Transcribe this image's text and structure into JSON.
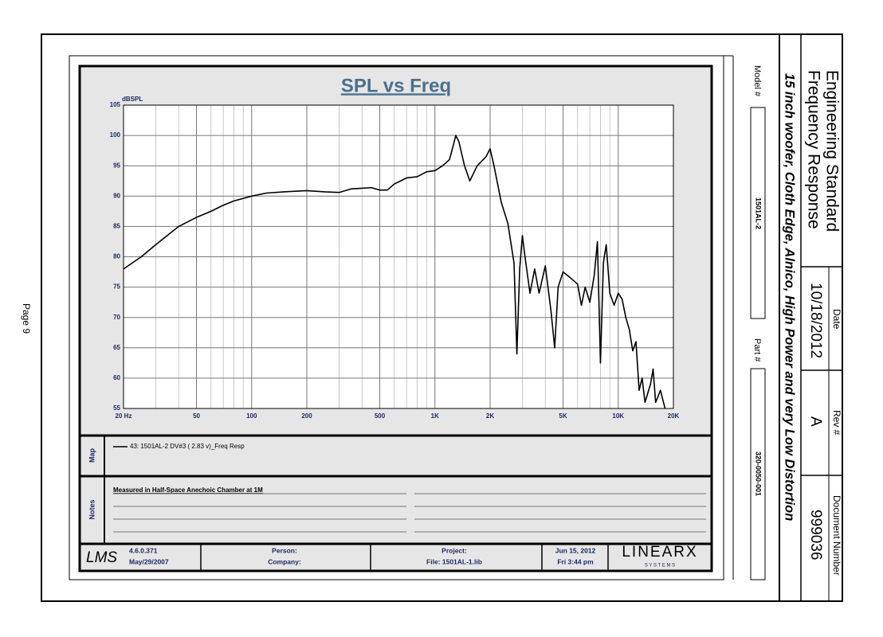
{
  "page_label": "Page 9",
  "title_block": {
    "title_line1": "Engineering Standard",
    "title_line2": "Frequency Response",
    "description": "15 inch woofer, Cloth Edge, Alnico, High Power and very Low Distortion",
    "date_label": "Date",
    "date": "10/18/2012",
    "rev_label": "Rev #",
    "rev": "A",
    "doc_label": "Document Number",
    "doc": "999036"
  },
  "side": {
    "model_label": "Model #",
    "model": "1501AL-2",
    "part_label": "Part #",
    "part": "320-0050-001"
  },
  "chart_data": {
    "type": "line",
    "title": "SPL vs Freq",
    "y_label": "dBSPL",
    "x": [
      20,
      25,
      30,
      40,
      50,
      60,
      70,
      80,
      100,
      120,
      150,
      200,
      250,
      300,
      350,
      400,
      450,
      500,
      550,
      600,
      650,
      700,
      800,
      900,
      1000,
      1100,
      1200,
      1250,
      1300,
      1350,
      1450,
      1550,
      1700,
      1900,
      2000,
      2100,
      2300,
      2500,
      2700,
      2800,
      2900,
      3000,
      3100,
      3300,
      3500,
      3700,
      4000,
      4300,
      4500,
      4700,
      5000,
      5500,
      6000,
      6300,
      6600,
      7000,
      7400,
      7700,
      8000,
      8300,
      8600,
      9000,
      9500,
      10000,
      10500,
      11000,
      11500,
      12000,
      12500,
      13000,
      13500,
      14000,
      15000,
      15500,
      16000,
      17000,
      18000
    ],
    "series": [
      {
        "name": "43: 1501AL-2 DV#3 ( 2.83 v)_Freq Resp",
        "color": "#000000",
        "values": [
          78,
          80,
          82,
          85,
          86.5,
          87.5,
          88.5,
          89.2,
          90,
          90.5,
          90.7,
          90.9,
          90.7,
          90.6,
          91.2,
          91.3,
          91.4,
          91,
          91,
          92,
          92.5,
          93,
          93.2,
          94,
          94.2,
          95,
          96,
          98,
          100,
          99,
          95,
          92.5,
          95,
          96.5,
          97.8,
          95,
          89,
          85.5,
          79,
          64,
          78,
          83.5,
          80,
          74,
          78,
          74,
          78.5,
          71,
          65,
          75,
          77.5,
          76.5,
          75.5,
          72,
          75,
          72.5,
          77,
          82.5,
          62.5,
          79,
          82,
          74,
          72,
          74,
          73,
          70,
          68,
          64.5,
          66,
          58,
          60,
          56,
          59,
          61.5,
          56,
          58,
          55
        ]
      }
    ],
    "xlim": [
      20,
      20000
    ],
    "ylim": [
      55,
      105
    ],
    "log_x": true,
    "grid": true,
    "xticks": [
      {
        "value": 20,
        "label": "20 Hz"
      },
      50,
      100,
      200,
      500,
      {
        "value": 1000,
        "label": "1K"
      },
      {
        "value": 2000,
        "label": "2K"
      },
      {
        "value": 5000,
        "label": "5K"
      },
      {
        "value": 10000,
        "label": "10K"
      },
      {
        "value": 20000,
        "label": "20K"
      }
    ],
    "xminorticks": [
      30,
      40,
      60,
      70,
      80,
      90,
      300,
      400,
      600,
      700,
      800,
      900,
      3000,
      4000,
      6000,
      7000,
      8000,
      9000
    ],
    "yticks": [
      55,
      60,
      65,
      70,
      75,
      80,
      85,
      90,
      95,
      100,
      105
    ]
  },
  "map_label": "Map",
  "notes_label": "Notes",
  "note": "Measured in Half-Space Anechoic Chamber at 1M",
  "footer": {
    "logo": "LMS",
    "version": "4.6.0.371",
    "version_date": "May/29/2007",
    "person": "Person:",
    "company": "Company:",
    "project": "Project:",
    "file": "File: 1501AL-1.lib",
    "date": "Jun 15, 2012",
    "time": "Fri  3:44 pm",
    "brand": "LINEARX",
    "brand_sub": "S Y S T E M S"
  }
}
